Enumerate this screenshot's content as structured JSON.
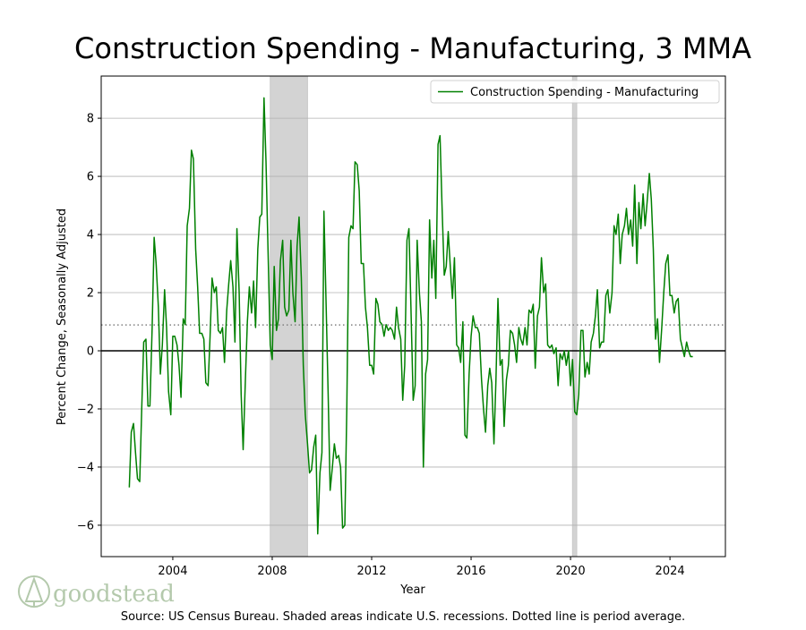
{
  "chart_data": {
    "type": "line",
    "title": "Construction Spending - Manufacturing, 3 MMA",
    "x_label": "Year",
    "y_label": "Percent Change, Seasonally Adjusted",
    "source": "Source: US Census Bureau. Shaded areas indicate U.S. recessions. Dotted line is period average.",
    "logo_text": "goodstead",
    "legend": "upper right",
    "grid": true,
    "average": 0.89,
    "recessions": [
      [
        2007.92,
        2009.42
      ],
      [
        2020.08,
        2020.25
      ]
    ],
    "xlim": [
      2001.12,
      2026.23
    ],
    "ylim": [
      -7.08,
      9.45
    ],
    "xticks": [
      2004,
      2008,
      2012,
      2016,
      2020,
      2024
    ],
    "yticks": [
      {
        "value": -6,
        "label": "−6"
      },
      {
        "value": -4,
        "label": "−4"
      },
      {
        "value": -2,
        "label": "−2"
      },
      0,
      2,
      4,
      6,
      8
    ],
    "x": [
      2002.25,
      2002.33,
      2002.42,
      2002.5,
      2002.58,
      2002.67,
      2002.75,
      2002.83,
      2002.92,
      2003.0,
      2003.08,
      2003.17,
      2003.25,
      2003.33,
      2003.42,
      2003.5,
      2003.58,
      2003.67,
      2003.75,
      2003.83,
      2003.92,
      2004.0,
      2004.08,
      2004.17,
      2004.25,
      2004.33,
      2004.42,
      2004.5,
      2004.58,
      2004.67,
      2004.75,
      2004.83,
      2004.92,
      2005.0,
      2005.08,
      2005.17,
      2005.25,
      2005.33,
      2005.42,
      2005.5,
      2005.58,
      2005.67,
      2005.75,
      2005.83,
      2005.92,
      2006.0,
      2006.08,
      2006.17,
      2006.25,
      2006.33,
      2006.42,
      2006.5,
      2006.58,
      2006.67,
      2006.75,
      2006.83,
      2006.92,
      2007.0,
      2007.08,
      2007.17,
      2007.25,
      2007.33,
      2007.42,
      2007.5,
      2007.58,
      2007.67,
      2007.75,
      2007.83,
      2007.92,
      2008.0,
      2008.08,
      2008.17,
      2008.25,
      2008.33,
      2008.42,
      2008.5,
      2008.58,
      2008.67,
      2008.75,
      2008.83,
      2008.92,
      2009.0,
      2009.08,
      2009.17,
      2009.25,
      2009.33,
      2009.42,
      2009.5,
      2009.58,
      2009.67,
      2009.75,
      2009.83,
      2009.92,
      2010.0,
      2010.08,
      2010.17,
      2010.25,
      2010.33,
      2010.42,
      2010.5,
      2010.58,
      2010.67,
      2010.75,
      2010.83,
      2010.92,
      2011.0,
      2011.08,
      2011.17,
      2011.25,
      2011.33,
      2011.42,
      2011.5,
      2011.58,
      2011.67,
      2011.75,
      2011.83,
      2011.92,
      2012.0,
      2012.08,
      2012.17,
      2012.25,
      2012.33,
      2012.42,
      2012.5,
      2012.58,
      2012.67,
      2012.75,
      2012.83,
      2012.92,
      2013.0,
      2013.08,
      2013.17,
      2013.25,
      2013.33,
      2013.42,
      2013.5,
      2013.58,
      2013.67,
      2013.75,
      2013.83,
      2013.92,
      2014.0,
      2014.08,
      2014.17,
      2014.25,
      2014.33,
      2014.42,
      2014.5,
      2014.58,
      2014.67,
      2014.75,
      2014.83,
      2014.92,
      2015.0,
      2015.08,
      2015.17,
      2015.25,
      2015.33,
      2015.42,
      2015.5,
      2015.58,
      2015.67,
      2015.75,
      2015.83,
      2015.92,
      2016.0,
      2016.08,
      2016.17,
      2016.25,
      2016.33,
      2016.42,
      2016.5,
      2016.58,
      2016.67,
      2016.75,
      2016.83,
      2016.92,
      2017.0,
      2017.08,
      2017.17,
      2017.25,
      2017.33,
      2017.42,
      2017.5,
      2017.58,
      2017.67,
      2017.75,
      2017.83,
      2017.92,
      2018.0,
      2018.08,
      2018.17,
      2018.25,
      2018.33,
      2018.42,
      2018.5,
      2018.58,
      2018.67,
      2018.75,
      2018.83,
      2018.92,
      2019.0,
      2019.08,
      2019.17,
      2019.25,
      2019.33,
      2019.42,
      2019.5,
      2019.58,
      2019.67,
      2019.75,
      2019.83,
      2019.92,
      2020.0,
      2020.08,
      2020.17,
      2020.25,
      2020.33,
      2020.42,
      2020.5,
      2020.58,
      2020.67,
      2020.75,
      2020.83,
      2020.92,
      2021.0,
      2021.08,
      2021.17,
      2021.25,
      2021.33,
      2021.42,
      2021.5,
      2021.58,
      2021.67,
      2021.75,
      2021.83,
      2021.92,
      2022.0,
      2022.08,
      2022.17,
      2022.25,
      2022.33,
      2022.42,
      2022.5,
      2022.58,
      2022.67,
      2022.75,
      2022.83,
      2022.92,
      2023.0,
      2023.08,
      2023.17,
      2023.25,
      2023.33,
      2023.42,
      2023.5,
      2023.58,
      2023.67,
      2023.75,
      2023.83,
      2023.92,
      2024.0,
      2024.08,
      2024.17,
      2024.25,
      2024.33,
      2024.42,
      2024.5,
      2024.58,
      2024.67,
      2024.75,
      2024.83,
      2024.92
    ],
    "series": [
      {
        "name": "Construction Spending - Manufacturing",
        "color": "#008000",
        "values": [
          -4.7,
          -2.8,
          -2.5,
          -3.5,
          -4.4,
          -4.5,
          -2.0,
          0.3,
          0.4,
          -1.9,
          -1.9,
          0.8,
          3.9,
          3.0,
          1.5,
          -0.8,
          0.2,
          2.1,
          0.8,
          -1.4,
          -2.2,
          0.5,
          0.5,
          0.2,
          -0.5,
          -1.6,
          1.1,
          0.9,
          4.3,
          4.9,
          6.9,
          6.6,
          3.5,
          2.2,
          0.6,
          0.6,
          0.4,
          -1.1,
          -1.2,
          0.5,
          2.5,
          2.0,
          2.2,
          0.7,
          0.6,
          0.8,
          -0.4,
          1.4,
          2.3,
          3.1,
          2.2,
          0.3,
          4.2,
          2.0,
          -1.5,
          -3.4,
          -1.0,
          1.0,
          2.2,
          1.3,
          2.4,
          0.8,
          3.5,
          4.6,
          4.7,
          8.7,
          6.5,
          3.5,
          0.2,
          -0.3,
          2.9,
          0.7,
          1.1,
          3.1,
          3.8,
          1.5,
          1.2,
          1.4,
          3.8,
          2.0,
          1.0,
          3.6,
          4.6,
          2.5,
          -0.5,
          -2.2,
          -3.2,
          -4.2,
          -4.1,
          -3.3,
          -2.9,
          -6.3,
          -4.2,
          -3.5,
          4.8,
          1.5,
          -1.5,
          -4.8,
          -4.0,
          -3.2,
          -3.7,
          -3.6,
          -4.0,
          -6.1,
          -6.0,
          -2.0,
          3.9,
          4.3,
          4.2,
          6.5,
          6.4,
          5.5,
          3.0,
          3.0,
          1.5,
          0.8,
          -0.5,
          -0.5,
          -0.8,
          1.8,
          1.6,
          1.0,
          0.9,
          0.5,
          0.9,
          0.7,
          0.8,
          0.7,
          0.4,
          1.5,
          0.8,
          0.4,
          -1.7,
          -0.5,
          3.8,
          4.2,
          1.5,
          -1.7,
          -1.2,
          3.8,
          2.0,
          1.0,
          -4.0,
          -0.8,
          -0.3,
          4.5,
          2.5,
          3.8,
          1.8,
          7.1,
          7.4,
          5.0,
          2.6,
          2.9,
          4.1,
          2.8,
          1.8,
          3.2,
          0.2,
          0.1,
          -0.4,
          1.0,
          -2.9,
          -3.0,
          -0.8,
          0.5,
          1.2,
          0.8,
          0.8,
          0.6,
          -1.0,
          -2.0,
          -2.8,
          -1.2,
          -0.6,
          -1.1,
          -3.2,
          -1.0,
          1.8,
          -0.5,
          -0.3,
          -2.6,
          -1.0,
          -0.5,
          0.7,
          0.6,
          0.2,
          -0.4,
          0.8,
          0.4,
          0.2,
          0.8,
          0.2,
          1.4,
          1.3,
          1.6,
          -0.6,
          1.2,
          1.5,
          3.2,
          2.0,
          2.3,
          0.2,
          0.1,
          0.2,
          -0.1,
          0.1,
          -1.2,
          -0.1,
          -0.3,
          0.0,
          -0.5,
          0.0,
          -1.2,
          -0.3,
          -2.1,
          -2.2,
          -1.5,
          0.7,
          0.7,
          -0.9,
          -0.4,
          -0.8,
          0.3,
          0.6,
          1.2,
          2.1,
          0.1,
          0.3,
          0.3,
          1.9,
          2.1,
          1.3,
          2.0,
          4.3,
          4.0,
          4.7,
          3.0,
          4.0,
          4.3,
          4.9,
          4.0,
          4.5,
          3.6,
          5.7,
          3.0,
          5.1,
          4.2,
          5.4,
          4.3,
          5.1,
          6.1,
          5.2,
          3.5,
          0.4,
          1.1,
          -0.4,
          0.8,
          2.0,
          3.0,
          3.3,
          1.9,
          1.9,
          1.3,
          1.7,
          1.8,
          0.4,
          0.1,
          -0.2,
          0.3,
          0.0,
          -0.2,
          -0.2
        ]
      }
    ]
  }
}
